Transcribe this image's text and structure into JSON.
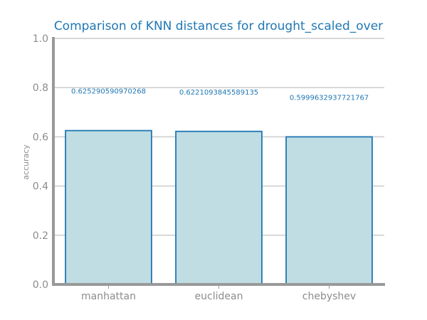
{
  "chart_data": {
    "type": "bar",
    "title": "Comparison of KNN distances for drought_scaled_over",
    "xlabel": "",
    "ylabel": "accuracy",
    "categories": [
      "manhattan",
      "euclidean",
      "chebyshev"
    ],
    "values": [
      0.625290590970268,
      0.6221093845589135,
      0.5999632937721767
    ],
    "value_labels": [
      "0.625290590970268",
      "0.6221093845589135",
      "0.5999632937721767"
    ],
    "ylim": [
      0,
      1
    ],
    "yticks": [
      "0.0",
      "0.2",
      "0.4",
      "0.6",
      "0.8",
      "1.0"
    ],
    "grid": true,
    "colors": {
      "bar_fill": "#bfdde2",
      "bar_edge": "#1f77b4",
      "title": "#1f77b4",
      "label": "#1f77b4"
    }
  }
}
